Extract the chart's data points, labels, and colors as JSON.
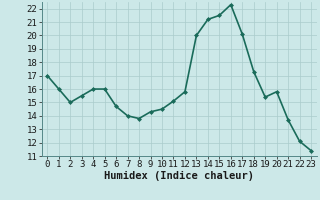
{
  "x": [
    0,
    1,
    2,
    3,
    4,
    5,
    6,
    7,
    8,
    9,
    10,
    11,
    12,
    13,
    14,
    15,
    16,
    17,
    18,
    19,
    20,
    21,
    22,
    23
  ],
  "y": [
    17,
    16,
    15,
    15.5,
    16,
    16,
    14.7,
    14,
    13.8,
    14.3,
    14.5,
    15.1,
    15.8,
    20,
    21.2,
    21.5,
    22.3,
    20.1,
    17.3,
    15.4,
    15.8,
    13.7,
    12.1,
    11.4
  ],
  "line_color": "#1a6b5a",
  "marker": "D",
  "marker_size": 2.0,
  "bg_color": "#cce8e8",
  "grid_color": "#aacccc",
  "xlabel": "Humidex (Indice chaleur)",
  "xlabel_fontsize": 7.5,
  "ylim": [
    11,
    22.5
  ],
  "xlim": [
    -0.5,
    23.5
  ],
  "yticks": [
    11,
    12,
    13,
    14,
    15,
    16,
    17,
    18,
    19,
    20,
    21,
    22
  ],
  "xticks": [
    0,
    1,
    2,
    3,
    4,
    5,
    6,
    7,
    8,
    9,
    10,
    11,
    12,
    13,
    14,
    15,
    16,
    17,
    18,
    19,
    20,
    21,
    22,
    23
  ],
  "tick_fontsize": 6.5,
  "line_width": 1.2
}
